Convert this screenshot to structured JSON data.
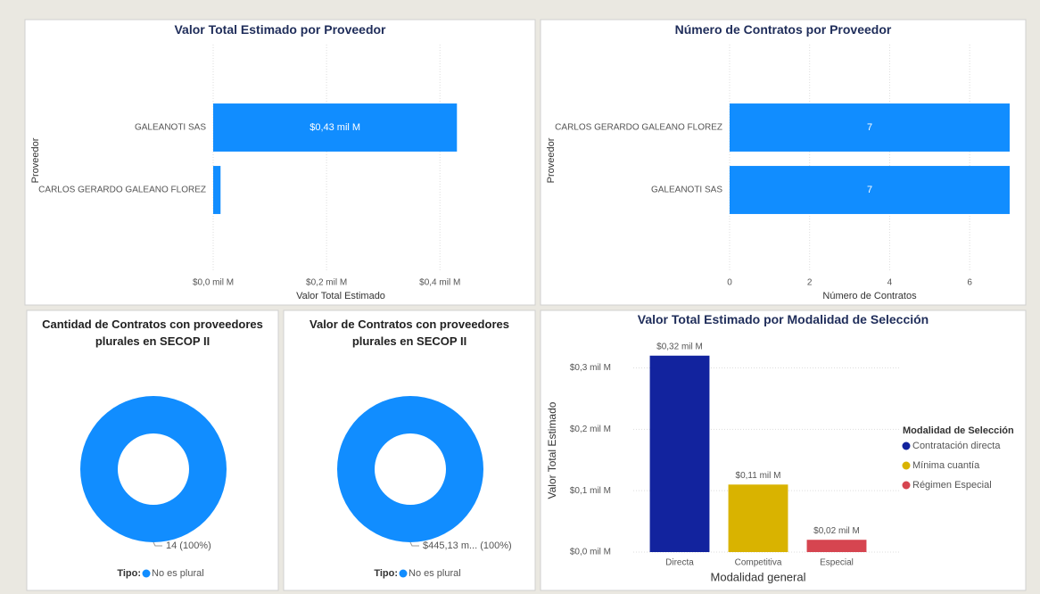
{
  "chart_data": [
    {
      "type": "hbar",
      "title": "Valor Total Estimado por Proveedor",
      "x_label": "Valor Total Estimado",
      "y_label": "Proveedor",
      "categories": [
        "GALEANOTI SAS",
        "CARLOS GERARDO GALEANO FLOREZ"
      ],
      "values": [
        0.43,
        0.013
      ],
      "value_labels": [
        "$0,43 mil M",
        null
      ],
      "color": "#118dff",
      "xlim": [
        0,
        0.45
      ],
      "xticks": [
        {
          "value": 0,
          "label": "$0,0 mil M"
        },
        {
          "value": 0.2,
          "label": "$0,2 mil M"
        },
        {
          "value": 0.4,
          "label": "$0,4 mil M"
        }
      ],
      "grid": true
    },
    {
      "type": "hbar",
      "title": "Número de Contratos por Proveedor",
      "x_label": "Número de Contratos",
      "y_label": "Proveedor",
      "categories": [
        "CARLOS GERARDO GALEANO FLOREZ",
        "GALEANOTI SAS"
      ],
      "values": [
        7,
        7
      ],
      "color": "#118dff",
      "xlim": [
        0,
        7
      ],
      "xticks": [
        0,
        2,
        4,
        6
      ],
      "grid": true
    },
    {
      "type": "donut",
      "title": "Cantidad de Contratos con proveedores plurales en SECOP II",
      "legend_title": "Tipo:",
      "categories": [
        "No es plural"
      ],
      "values": [
        14
      ],
      "value_labels": [
        "14 (100%)"
      ],
      "colors": [
        "#118dff"
      ]
    },
    {
      "type": "donut",
      "title": "Valor de Contratos con proveedores plurales en SECOP II",
      "legend_title": "Tipo:",
      "categories": [
        "No es plural"
      ],
      "values": [
        445.13
      ],
      "value_labels": [
        "$445,13 m... (100%)"
      ],
      "colors": [
        "#118dff"
      ]
    },
    {
      "type": "bar",
      "title": "Valor Total Estimado por Modalidad de Selección",
      "x_label": "Modalidad general",
      "y_label": "Valor Total Estimado",
      "categories": [
        "Directa",
        "Competitiva",
        "Especial"
      ],
      "values": [
        0.32,
        0.11,
        0.02
      ],
      "value_labels": [
        "$0,32 mil M",
        "$0,11 mil M",
        "$0,02 mil M"
      ],
      "colors": [
        "#12239e",
        "#d9b300",
        "#d64550"
      ],
      "legend_title": "Modalidad de Selección",
      "legend_labels": [
        "Contratación directa",
        "Mínima cuantía",
        "Régimen Especial"
      ],
      "ylim": [
        0,
        0.34
      ],
      "yticks": [
        {
          "value": 0,
          "label": "$0,0 mil M"
        },
        {
          "value": 0.1,
          "label": "$0,1 mil M"
        },
        {
          "value": 0.2,
          "label": "$0,2 mil M"
        },
        {
          "value": 0.3,
          "label": "$0,3 mil M"
        }
      ],
      "grid": true
    }
  ]
}
